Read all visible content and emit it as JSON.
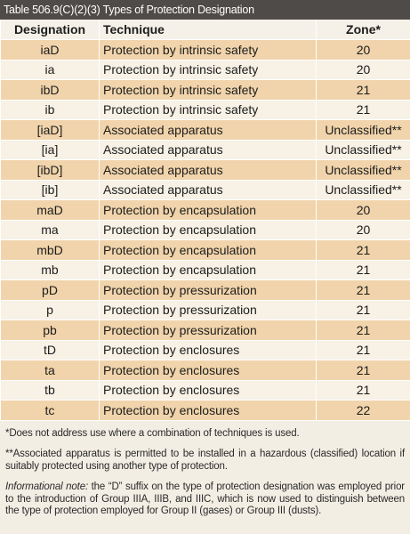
{
  "title": "Table 506.9(C)(2)(3) Types of Protection Designation",
  "headers": {
    "designation": "Designation",
    "technique": "Technique",
    "zone": "Zone*"
  },
  "rows": [
    {
      "designation": "iaD",
      "technique": "Protection by intrinsic safety",
      "zone": "20"
    },
    {
      "designation": "ia",
      "technique": "Protection by intrinsic safety",
      "zone": "20"
    },
    {
      "designation": "ibD",
      "technique": "Protection by intrinsic safety",
      "zone": "21"
    },
    {
      "designation": "ib",
      "technique": "Protection by intrinsic safety",
      "zone": "21"
    },
    {
      "designation": "[iaD]",
      "technique": "Associated apparatus",
      "zone": "Unclassified**"
    },
    {
      "designation": "[ia]",
      "technique": "Associated apparatus",
      "zone": "Unclassified**"
    },
    {
      "designation": "[ibD]",
      "technique": "Associated apparatus",
      "zone": "Unclassified**"
    },
    {
      "designation": "[ib]",
      "technique": "Associated apparatus",
      "zone": "Unclassified**"
    },
    {
      "designation": "maD",
      "technique": "Protection by encapsulation",
      "zone": "20"
    },
    {
      "designation": "ma",
      "technique": "Protection by encapsulation",
      "zone": "20"
    },
    {
      "designation": "mbD",
      "technique": "Protection by encapsulation",
      "zone": "21"
    },
    {
      "designation": "mb",
      "technique": "Protection by encapsulation",
      "zone": "21"
    },
    {
      "designation": "pD",
      "technique": "Protection by pressurization",
      "zone": "21"
    },
    {
      "designation": "p",
      "technique": "Protection by pressurization",
      "zone": "21"
    },
    {
      "designation": "pb",
      "technique": "Protection by pressurization",
      "zone": "21"
    },
    {
      "designation": "tD",
      "technique": "Protection by enclosures",
      "zone": "21"
    },
    {
      "designation": "ta",
      "technique": "Protection by enclosures",
      "zone": "21"
    },
    {
      "designation": "tb",
      "technique": "Protection by enclosures",
      "zone": "21"
    },
    {
      "designation": "tc",
      "technique": "Protection by enclosures",
      "zone": "22"
    }
  ],
  "notes": {
    "note1": "*Does not address use where a combination of techniques is used.",
    "note2": "**Associated apparatus is permitted to be installed in a hazardous (classified) location if suitably protected using another type of protection.",
    "info_label": "Informational note:",
    "info_text": " the “D” suffix on the type of protection designation was employed prior to the introduction of Group IIIA, IIIB, and IIIC, which is now used to distinguish between the type of protection employed for Group II (gases) or Group III (dusts)."
  },
  "colors": {
    "title_bar": "#4f4b48",
    "row_tan": "#f1d4ab",
    "row_light": "#f7f1e6",
    "page_bg": "#f3eee4"
  }
}
